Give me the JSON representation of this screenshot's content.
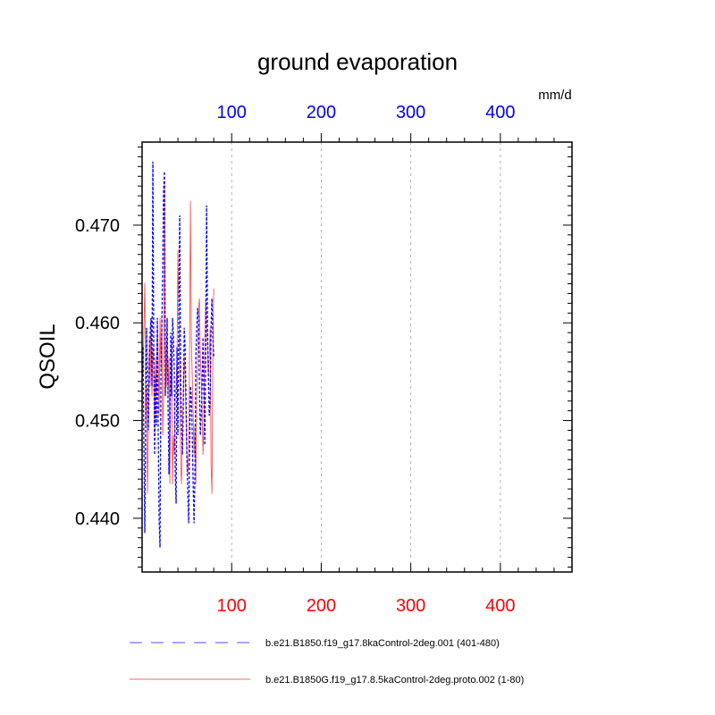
{
  "chart_data": {
    "type": "line",
    "title": "ground evaporation",
    "units": "mm/d",
    "ylabel": "QSOIL",
    "xlim": [
      0,
      480
    ],
    "ylim": [
      0.4345,
      0.4785
    ],
    "x_ticks": [
      100,
      200,
      300,
      400
    ],
    "x_tick_labels": [
      "100",
      "200",
      "300",
      "400"
    ],
    "y_ticks": [
      0.44,
      0.45,
      0.46,
      0.47
    ],
    "y_tick_labels": [
      "0.440",
      "0.450",
      "0.460",
      "0.470"
    ],
    "top_axis_color": "#0000ff",
    "bottom_axis_color": "#ff0000",
    "grid": "vertical dashed at major x ticks",
    "legend_position": "bottom",
    "series": [
      {
        "name": "b.e21.B1850.f19_g17.8kaControl-2deg.001 (401-480)",
        "color": "#0000ff",
        "style": "dashed",
        "x": [
          1,
          2,
          3,
          4,
          5,
          6,
          7,
          8,
          9,
          10,
          11,
          12,
          13,
          14,
          15,
          16,
          17,
          18,
          19,
          20,
          21,
          22,
          23,
          24,
          25,
          26,
          27,
          28,
          29,
          30,
          31,
          32,
          33,
          34,
          35,
          36,
          37,
          38,
          39,
          40,
          41,
          42,
          43,
          44,
          45,
          46,
          47,
          48,
          49,
          50,
          51,
          52,
          53,
          54,
          55,
          56,
          57,
          58,
          59,
          60,
          61,
          62,
          63,
          64,
          65,
          66,
          67,
          68,
          69,
          70,
          71,
          72,
          73,
          74,
          75,
          76,
          77,
          78,
          79,
          80
        ],
        "y": [
          0.4575,
          0.4475,
          0.4385,
          0.4505,
          0.4595,
          0.4535,
          0.449,
          0.456,
          0.459,
          0.4605,
          0.4535,
          0.4765,
          0.4575,
          0.4465,
          0.4545,
          0.4495,
          0.4605,
          0.4485,
          0.44,
          0.437,
          0.4545,
          0.4595,
          0.4655,
          0.4735,
          0.4755,
          0.4525,
          0.4565,
          0.4605,
          0.4515,
          0.4445,
          0.4495,
          0.459,
          0.4525,
          0.4605,
          0.4585,
          0.4545,
          0.4445,
          0.4415,
          0.4575,
          0.4485,
          0.4615,
          0.471,
          0.4545,
          0.4495,
          0.4465,
          0.4515,
          0.4595,
          0.4575,
          0.4525,
          0.4465,
          0.4425,
          0.4395,
          0.4475,
          0.4535,
          0.4525,
          0.4485,
          0.4435,
          0.4395,
          0.4445,
          0.4565,
          0.4595,
          0.4615,
          0.4605,
          0.4535,
          0.4485,
          0.4505,
          0.4535,
          0.4585,
          0.4525,
          0.4475,
          0.4565,
          0.472,
          0.4595,
          0.4545,
          0.4505,
          0.4525,
          0.4595,
          0.4625,
          0.4585,
          0.4565
        ]
      },
      {
        "name": "b.e21.B1850G.f19_g17.8.5kaControl-2deg.proto.002 (1-80)",
        "color": "#ff0000",
        "style": "solid",
        "x": [
          1,
          2,
          3,
          4,
          5,
          6,
          7,
          8,
          9,
          10,
          11,
          12,
          13,
          14,
          15,
          16,
          17,
          18,
          19,
          20,
          21,
          22,
          23,
          24,
          25,
          26,
          27,
          28,
          29,
          30,
          31,
          32,
          33,
          34,
          35,
          36,
          37,
          38,
          39,
          40,
          41,
          42,
          43,
          44,
          45,
          46,
          47,
          48,
          49,
          50,
          51,
          52,
          53,
          54,
          55,
          56,
          57,
          58,
          59,
          60,
          61,
          62,
          63,
          64,
          65,
          66,
          67,
          68,
          69,
          70,
          71,
          72,
          73,
          74,
          75,
          76,
          77,
          78,
          79,
          80
        ],
        "y": [
          0.4545,
          0.4595,
          0.4641,
          0.4495,
          0.4535,
          0.4425,
          0.449,
          0.4585,
          0.4535,
          0.4595,
          0.4525,
          0.4575,
          0.4555,
          0.4485,
          0.4565,
          0.4525,
          0.4605,
          0.4565,
          0.4505,
          0.4605,
          0.455,
          0.4605,
          0.4485,
          0.4525,
          0.4745,
          0.4565,
          0.4535,
          0.4585,
          0.4525,
          0.4565,
          0.4435,
          0.4545,
          0.4585,
          0.4435,
          0.4485,
          0.4465,
          0.4525,
          0.4535,
          0.4565,
          0.4675,
          0.4605,
          0.4565,
          0.4455,
          0.4435,
          0.4485,
          0.4525,
          0.4565,
          0.4545,
          0.4505,
          0.4465,
          0.4445,
          0.4465,
          0.4565,
          0.4725,
          0.4585,
          0.4545,
          0.4505,
          0.4465,
          0.4495,
          0.4435,
          0.4525,
          0.4565,
          0.4615,
          0.4625,
          0.4565,
          0.4545,
          0.4515,
          0.4465,
          0.4495,
          0.4575,
          0.4625,
          0.4605,
          0.4575,
          0.4545,
          0.4565,
          0.4595,
          0.4455,
          0.4425,
          0.4565,
          0.4635
        ]
      }
    ]
  }
}
